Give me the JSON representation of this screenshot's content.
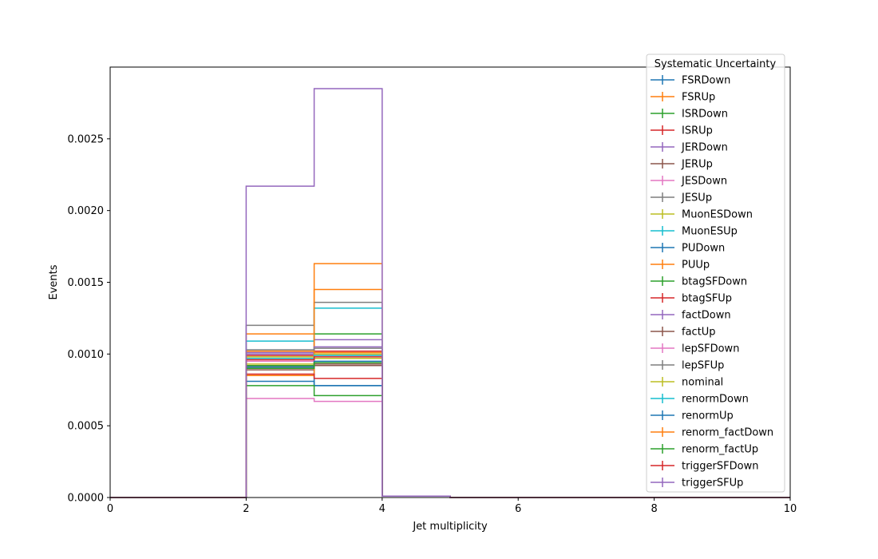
{
  "chart_data": {
    "type": "histogram-step",
    "xlabel": "Jet multiplicity",
    "ylabel": "Events",
    "xlim": [
      0,
      10
    ],
    "ylim": [
      0,
      0.003
    ],
    "x_ticks": [
      0,
      2,
      4,
      6,
      8,
      10
    ],
    "x_tick_labels": [
      "0",
      "2",
      "4",
      "6",
      "8",
      "10"
    ],
    "y_ticks": [
      0,
      0.0005,
      0.001,
      0.0015,
      0.002,
      0.0025
    ],
    "y_tick_labels": [
      "0.0000",
      "0.0005",
      "0.0010",
      "0.0015",
      "0.0020",
      "0.0025"
    ],
    "bin_edges": [
      0,
      1,
      2,
      3,
      4,
      5,
      6,
      7,
      8,
      9,
      10
    ],
    "grid": false,
    "legend": {
      "title": "Systematic Uncertainty",
      "placement": "upper right"
    },
    "series": [
      {
        "name": "FSRDown",
        "color": "#1f77b4",
        "values": [
          0,
          0,
          0.0009,
          0.00078,
          1e-05,
          0,
          0,
          0,
          0,
          0
        ]
      },
      {
        "name": "FSRUp",
        "color": "#ff7f0e",
        "values": [
          0,
          0,
          0.00114,
          0.00163,
          1e-05,
          0,
          0,
          0,
          0,
          0
        ]
      },
      {
        "name": "ISRDown",
        "color": "#2ca02c",
        "values": [
          0,
          0,
          0.00092,
          0.00114,
          1e-05,
          0,
          0,
          0,
          0,
          0
        ]
      },
      {
        "name": "ISRUp",
        "color": "#d62728",
        "values": [
          0,
          0,
          0.00099,
          0.00102,
          1e-05,
          0,
          0,
          0,
          0,
          0
        ]
      },
      {
        "name": "JERDown",
        "color": "#9467bd",
        "values": [
          0,
          0,
          0.00101,
          0.0011,
          1e-05,
          0,
          0,
          0,
          0,
          0
        ]
      },
      {
        "name": "JERUp",
        "color": "#8c564b",
        "values": [
          0,
          0,
          0.00089,
          0.00092,
          1e-05,
          0,
          0,
          0,
          0,
          0
        ]
      },
      {
        "name": "JESDown",
        "color": "#e377c2",
        "values": [
          0,
          0,
          0.00069,
          0.00067,
          1e-05,
          0,
          0,
          0,
          0,
          0
        ]
      },
      {
        "name": "JESUp",
        "color": "#7f7f7f",
        "values": [
          0,
          0,
          0.0012,
          0.00136,
          1e-05,
          0,
          0,
          0,
          0,
          0
        ]
      },
      {
        "name": "MuonESDown",
        "color": "#bcbd22",
        "values": [
          0,
          0,
          0.00093,
          0.00097,
          1e-05,
          0,
          0,
          0,
          0,
          0
        ]
      },
      {
        "name": "MuonESUp",
        "color": "#17becf",
        "values": [
          0,
          0,
          0.00109,
          0.00132,
          1e-05,
          0,
          0,
          0,
          0,
          0
        ]
      },
      {
        "name": "PUDown",
        "color": "#1f77b4",
        "values": [
          0,
          0,
          0.00081,
          0.00078,
          1e-05,
          0,
          0,
          0,
          0,
          0
        ]
      },
      {
        "name": "PUUp",
        "color": "#ff7f0e",
        "values": [
          0,
          0,
          0.00085,
          0.00145,
          1e-05,
          0,
          0,
          0,
          0,
          0
        ]
      },
      {
        "name": "btagSFDown",
        "color": "#2ca02c",
        "values": [
          0,
          0,
          0.00078,
          0.00071,
          1e-05,
          0,
          0,
          0,
          0,
          0
        ]
      },
      {
        "name": "btagSFUp",
        "color": "#d62728",
        "values": [
          0,
          0,
          0.00086,
          0.00083,
          1e-05,
          0,
          0,
          0,
          0,
          0
        ]
      },
      {
        "name": "factDown",
        "color": "#9467bd",
        "values": [
          0,
          0,
          0.001,
          0.00105,
          1e-05,
          0,
          0,
          0,
          0,
          0
        ]
      },
      {
        "name": "factUp",
        "color": "#8c564b",
        "values": [
          0,
          0,
          0.00091,
          0.00093,
          1e-05,
          0,
          0,
          0,
          0,
          0
        ]
      },
      {
        "name": "lepSFDown",
        "color": "#e377c2",
        "values": [
          0,
          0,
          0.00095,
          0.00099,
          1e-05,
          0,
          0,
          0,
          0,
          0
        ]
      },
      {
        "name": "lepSFUp",
        "color": "#7f7f7f",
        "values": [
          0,
          0,
          0.00103,
          0.00104,
          1e-05,
          0,
          0,
          0,
          0,
          0
        ]
      },
      {
        "name": "nominal",
        "color": "#bcbd22",
        "values": [
          0,
          0,
          0.00098,
          0.001,
          1e-05,
          0,
          0,
          0,
          0,
          0
        ]
      },
      {
        "name": "renormDown",
        "color": "#17becf",
        "values": [
          0,
          0,
          0.00097,
          0.00099,
          1e-05,
          0,
          0,
          0,
          0,
          0
        ]
      },
      {
        "name": "renormUp",
        "color": "#1f77b4",
        "values": [
          0,
          0,
          0.00091,
          0.00095,
          1e-05,
          0,
          0,
          0,
          0,
          0
        ]
      },
      {
        "name": "renorm_factDown",
        "color": "#ff7f0e",
        "values": [
          0,
          0,
          0.00102,
          0.00101,
          1e-05,
          0,
          0,
          0,
          0,
          0
        ]
      },
      {
        "name": "renorm_factUp",
        "color": "#2ca02c",
        "values": [
          0,
          0,
          0.0009,
          0.00094,
          1e-05,
          0,
          0,
          0,
          0,
          0
        ]
      },
      {
        "name": "triggerSFDown",
        "color": "#d62728",
        "values": [
          0,
          0,
          0.00096,
          0.00098,
          1e-05,
          0,
          0,
          0,
          0,
          0
        ]
      },
      {
        "name": "triggerSFUp",
        "color": "#9467bd",
        "values": [
          0,
          0,
          0.00217,
          0.00285,
          1e-05,
          0,
          0,
          0,
          0,
          0
        ]
      }
    ]
  }
}
